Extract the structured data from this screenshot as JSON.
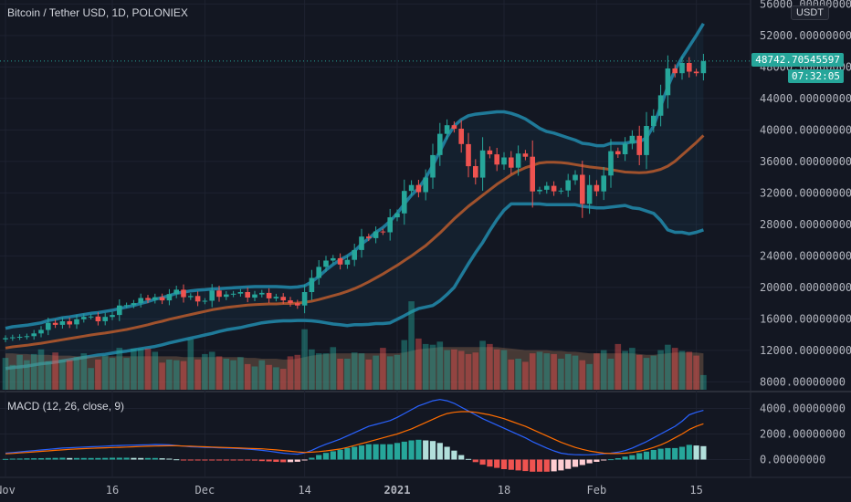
{
  "header": {
    "symbol_title": "Bitcoin / Tether USD, 1D, POLONIEX",
    "currency_button": "USDT"
  },
  "price_scale": {
    "labels": [
      "56000.00000000",
      "52000.00000000",
      "48000.00000000",
      "44000.00000000",
      "40000.00000000",
      "36000.00000000",
      "32000.00000000",
      "28000.00000000",
      "24000.00000000",
      "20000.00000000",
      "16000.00000000",
      "12000.00000000",
      "8000.00000000"
    ],
    "last_price": "48742.70545597",
    "countdown": "07:32:05"
  },
  "macd_panel": {
    "title": "MACD (12, 26, close, 9)",
    "labels": [
      "4000.00000000",
      "2000.00000000",
      "0.00000000"
    ]
  },
  "time_axis": {
    "labels": [
      "Nov",
      "16",
      "Dec",
      "14",
      "2021",
      "18",
      "Feb",
      "15"
    ]
  },
  "colors": {
    "background": "#131722",
    "up": "#26a69a",
    "down": "#ef5350",
    "bollinger_band": "#1f7a99",
    "bollinger_basis": "#a0522d",
    "macd_line": "#2962ff",
    "signal_line": "#ff6d00",
    "grid": "#1e2230"
  },
  "chart_data": [
    {
      "type": "candlestick",
      "title": "Bitcoin / Tether USD, 1D, POLONIEX",
      "ylim": [
        7000,
        56500
      ],
      "yticks": [
        8000,
        12000,
        16000,
        20000,
        24000,
        28000,
        32000,
        36000,
        40000,
        44000,
        48000,
        52000,
        56000
      ],
      "x_labels": [
        "Nov",
        "16",
        "Dec",
        "14",
        "2021",
        "18",
        "Feb",
        "15"
      ],
      "close": [
        13550,
        13650,
        13720,
        13800,
        14150,
        14600,
        15500,
        15250,
        15700,
        15300,
        15950,
        16250,
        16300,
        15700,
        16250,
        16500,
        17700,
        17750,
        18000,
        18650,
        18400,
        18750,
        18350,
        19150,
        19700,
        18750,
        18900,
        18200,
        18300,
        19600,
        18800,
        19100,
        19200,
        19400,
        18700,
        19100,
        19300,
        18600,
        18800,
        18350,
        18000,
        17700,
        19400,
        21200,
        22600,
        23400,
        23700,
        22900,
        23500,
        24750,
        26450,
        26250,
        27100,
        27000,
        28900,
        29400,
        32250,
        33000,
        32100,
        33950,
        36800,
        39500,
        40600,
        40150,
        38200,
        35400,
        33950,
        37400,
        36900,
        35600,
        36500,
        35200,
        37000,
        36600,
        32200,
        32400,
        32900,
        32200,
        32300,
        33600,
        34300,
        30600,
        33000,
        32200,
        34200,
        37300,
        36900,
        38250,
        39250,
        36800,
        40500,
        41800,
        44400,
        47800,
        47200,
        48500,
        47400,
        47200,
        48742
      ]
    },
    {
      "type": "line",
      "name": "Bollinger upper",
      "values": [
        14800,
        15000,
        15100,
        15200,
        15350,
        15500,
        15800,
        15950,
        16150,
        16250,
        16400,
        16550,
        16700,
        16800,
        16950,
        17100,
        17300,
        17500,
        17700,
        17950,
        18200,
        18500,
        18700,
        18950,
        19250,
        19400,
        19550,
        19650,
        19700,
        19800,
        19850,
        19900,
        19950,
        20000,
        20050,
        20100,
        20100,
        20100,
        20100,
        20050,
        20000,
        20050,
        20200,
        20700,
        21400,
        22200,
        22900,
        23500,
        24000,
        24600,
        25500,
        26200,
        27000,
        27600,
        28400,
        29400,
        30600,
        31700,
        32600,
        33900,
        35500,
        37300,
        39100,
        40500,
        41300,
        41800,
        42000,
        42100,
        42200,
        42300,
        42300,
        42100,
        41800,
        41400,
        40800,
        40200,
        39800,
        39600,
        39300,
        39000,
        38700,
        38300,
        38200,
        38000,
        38000,
        38300,
        38300,
        38300,
        38500,
        38500,
        39000,
        40500,
        43000,
        45500,
        47600,
        49200,
        50600,
        52000,
        53500
      ]
    },
    {
      "type": "line",
      "name": "Bollinger basis",
      "values": [
        12300,
        12450,
        12550,
        12650,
        12780,
        12900,
        13050,
        13200,
        13350,
        13500,
        13650,
        13800,
        13950,
        14080,
        14200,
        14350,
        14500,
        14650,
        14850,
        15050,
        15250,
        15500,
        15700,
        15950,
        16150,
        16350,
        16550,
        16750,
        16950,
        17150,
        17300,
        17450,
        17550,
        17650,
        17750,
        17800,
        17850,
        17900,
        17900,
        17950,
        17950,
        18000,
        18100,
        18250,
        18450,
        18700,
        18950,
        19200,
        19500,
        19850,
        20250,
        20700,
        21200,
        21700,
        22250,
        22800,
        23400,
        24000,
        24650,
        25300,
        26100,
        26900,
        27800,
        28700,
        29500,
        30300,
        31000,
        31700,
        32400,
        33100,
        33700,
        34300,
        34800,
        35200,
        35500,
        35800,
        35900,
        35900,
        35850,
        35750,
        35600,
        35450,
        35300,
        35200,
        35100,
        34950,
        34800,
        34650,
        34600,
        34550,
        34600,
        34750,
        35000,
        35400,
        36000,
        36800,
        37600,
        38400,
        39300
      ]
    },
    {
      "type": "line",
      "name": "Bollinger lower",
      "values": [
        9700,
        9800,
        9900,
        10000,
        10150,
        10300,
        10400,
        10500,
        10650,
        10800,
        10950,
        11100,
        11250,
        11400,
        11500,
        11650,
        11800,
        11900,
        12050,
        12200,
        12350,
        12500,
        12700,
        12950,
        13150,
        13350,
        13550,
        13750,
        13950,
        14150,
        14400,
        14600,
        14750,
        14900,
        15100,
        15300,
        15500,
        15600,
        15700,
        15750,
        15750,
        15800,
        15800,
        15750,
        15650,
        15500,
        15350,
        15250,
        15150,
        15250,
        15250,
        15300,
        15400,
        15400,
        15500,
        15950,
        16400,
        16900,
        17300,
        17500,
        17700,
        18300,
        19100,
        20000,
        21500,
        23000,
        24400,
        25700,
        27200,
        28600,
        29800,
        30600,
        30600,
        30600,
        30600,
        30600,
        30500,
        30500,
        30500,
        30500,
        30500,
        30300,
        30200,
        30100,
        30100,
        30200,
        30300,
        30400,
        30100,
        30000,
        29700,
        29400,
        28500,
        27300,
        27000,
        27000,
        26800,
        27000,
        27300
      ]
    },
    {
      "type": "bar",
      "name": "Volume",
      "values": [
        4100,
        3200,
        4500,
        3800,
        4600,
        5200,
        3700,
        4800,
        3900,
        3800,
        4200,
        4700,
        2800,
        3900,
        4400,
        4100,
        5400,
        4100,
        5300,
        5300,
        5300,
        4900,
        3500,
        3900,
        3800,
        3700,
        6500,
        3900,
        4600,
        4900,
        4300,
        4000,
        3800,
        4200,
        3300,
        3000,
        3800,
        3200,
        2900,
        2700,
        4300,
        4500,
        7800,
        5200,
        4700,
        4700,
        5500,
        4000,
        4000,
        4800,
        4700,
        3900,
        4400,
        5400,
        4300,
        4500,
        6400,
        11400,
        6600,
        5900,
        5800,
        6200,
        5100,
        5200,
        5000,
        4600,
        4800,
        6300,
        5900,
        5200,
        5100,
        3900,
        4000,
        3600,
        4700,
        4900,
        4700,
        4600,
        4000,
        4600,
        4400,
        3800,
        3300,
        4700,
        5100,
        4000,
        5900,
        5000,
        5400,
        4500,
        4100,
        4400,
        5100,
        5800,
        5400,
        5000,
        4900,
        4400,
        1900
      ]
    },
    {
      "type": "area",
      "name": "Volume MA",
      "values": [
        4700,
        4700,
        4600,
        4600,
        4500,
        4500,
        4500,
        4400,
        4400,
        4400,
        4300,
        4300,
        4300,
        4300,
        4300,
        4300,
        4300,
        4300,
        4300,
        4300,
        4300,
        4300,
        4300,
        4300,
        4300,
        4200,
        4200,
        4200,
        4200,
        4200,
        4200,
        4200,
        4200,
        4200,
        4100,
        4100,
        4000,
        4000,
        4000,
        3900,
        3900,
        4000,
        4200,
        4400,
        4500,
        4600,
        4700,
        4700,
        4700,
        4700,
        4700,
        4700,
        4700,
        4700,
        4700,
        4700,
        4800,
        5000,
        5200,
        5300,
        5400,
        5500,
        5500,
        5500,
        5500,
        5500,
        5500,
        5500,
        5500,
        5500,
        5400,
        5300,
        5200,
        5100,
        5100,
        5100,
        5100,
        5000,
        5000,
        4900,
        4900,
        4800,
        4700,
        4700,
        4700,
        4700,
        4700,
        4700,
        4700,
        4600,
        4500,
        4500,
        4600,
        4700,
        4800,
        4800,
        4800,
        4800,
        4700
      ]
    },
    {
      "type": "line",
      "name": "MACD",
      "ylim": [
        -1700,
        4700
      ],
      "yticks": [
        0,
        2000,
        4000
      ],
      "values": [
        500,
        550,
        600,
        650,
        700,
        750,
        800,
        850,
        900,
        920,
        950,
        980,
        1000,
        1020,
        1050,
        1080,
        1100,
        1120,
        1130,
        1140,
        1160,
        1180,
        1170,
        1150,
        1100,
        1050,
        1000,
        980,
        960,
        940,
        920,
        900,
        880,
        860,
        820,
        780,
        720,
        660,
        580,
        500,
        450,
        420,
        520,
        720,
        980,
        1200,
        1400,
        1600,
        1850,
        2100,
        2350,
        2600,
        2750,
        2900,
        3050,
        3300,
        3600,
        3900,
        4200,
        4400,
        4600,
        4700,
        4600,
        4400,
        4100,
        3800,
        3500,
        3200,
        2950,
        2700,
        2450,
        2200,
        1950,
        1700,
        1400,
        1150,
        900,
        680,
        500,
        420,
        380,
        370,
        380,
        400,
        450,
        500,
        580,
        700,
        900,
        1150,
        1400,
        1700,
        2000,
        2300,
        2600,
        3000,
        3500,
        3700,
        3850
      ]
    },
    {
      "type": "line",
      "name": "Signal",
      "values": [
        450,
        480,
        520,
        560,
        600,
        640,
        680,
        720,
        760,
        800,
        830,
        860,
        880,
        900,
        920,
        940,
        960,
        980,
        1000,
        1020,
        1040,
        1060,
        1070,
        1080,
        1080,
        1060,
        1040,
        1020,
        1000,
        980,
        960,
        940,
        920,
        900,
        880,
        860,
        840,
        800,
        760,
        710,
        650,
        590,
        560,
        580,
        620,
        680,
        750,
        830,
        950,
        1100,
        1250,
        1400,
        1550,
        1700,
        1850,
        2000,
        2200,
        2400,
        2650,
        2900,
        3150,
        3400,
        3600,
        3700,
        3750,
        3750,
        3700,
        3600,
        3500,
        3350,
        3200,
        3000,
        2800,
        2600,
        2350,
        2100,
        1850,
        1600,
        1350,
        1150,
        950,
        800,
        670,
        580,
        500,
        470,
        470,
        500,
        560,
        650,
        780,
        950,
        1150,
        1400,
        1700,
        2000,
        2350,
        2600,
        2800
      ]
    },
    {
      "type": "bar",
      "name": "MACD histogram",
      "values": [
        50,
        70,
        80,
        90,
        100,
        110,
        120,
        130,
        140,
        120,
        120,
        120,
        120,
        120,
        130,
        140,
        140,
        140,
        130,
        120,
        120,
        120,
        100,
        70,
        20,
        -10,
        -40,
        -40,
        -40,
        -40,
        -40,
        -40,
        -40,
        -40,
        -60,
        -80,
        -120,
        -140,
        -180,
        -210,
        -200,
        -170,
        -40,
        140,
        360,
        520,
        650,
        770,
        900,
        1000,
        1100,
        1200,
        1200,
        1200,
        1200,
        1300,
        1400,
        1500,
        1550,
        1500,
        1450,
        1300,
        1000,
        700,
        350,
        50,
        -200,
        -400,
        -550,
        -650,
        -750,
        -800,
        -850,
        -900,
        -950,
        -950,
        -950,
        -920,
        -850,
        -730,
        -570,
        -430,
        -290,
        -180,
        -50,
        30,
        110,
        230,
        340,
        500,
        620,
        750,
        850,
        900,
        900,
        1000,
        1150,
        1100,
        1050
      ]
    }
  ]
}
